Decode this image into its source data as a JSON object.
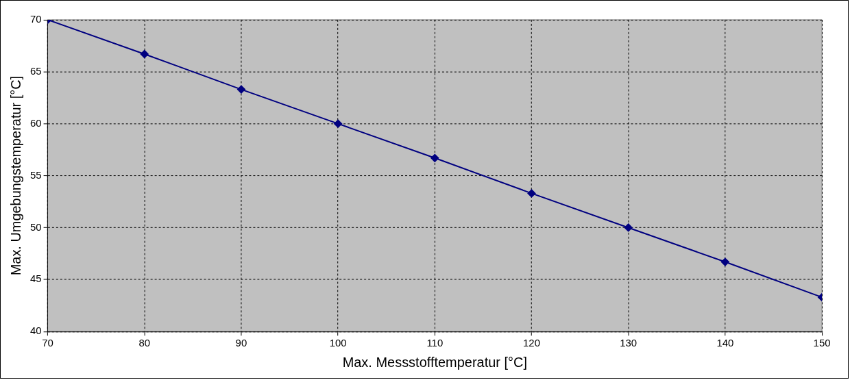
{
  "chart_data": {
    "type": "line",
    "xlabel": "Max. Messstofftemperatur [°C]",
    "ylabel": "Max. Umgebungstemperatur [°C]",
    "x": [
      70,
      80,
      90,
      100,
      110,
      120,
      130,
      140,
      150
    ],
    "series": [
      {
        "color": "#000080",
        "values": [
          70,
          66.7,
          63.3,
          60,
          56.7,
          53.3,
          50,
          46.7,
          43.3
        ]
      }
    ],
    "xlim": [
      70,
      150
    ],
    "xticks": [
      70,
      80,
      90,
      100,
      110,
      120,
      130,
      140,
      150
    ],
    "ylim": [
      40,
      70
    ],
    "yticks": [
      40,
      45,
      50,
      55,
      60,
      65,
      70
    ],
    "grid": true,
    "legend": false,
    "marker": "diamond",
    "line_style": "solid"
  }
}
